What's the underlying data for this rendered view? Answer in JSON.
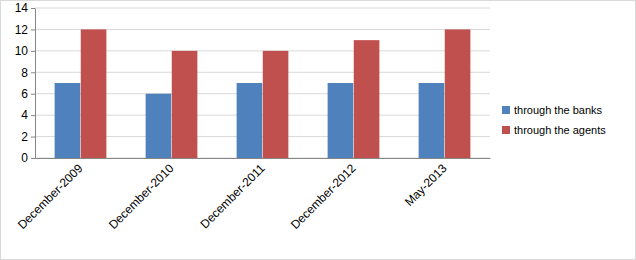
{
  "chart_data": {
    "type": "bar",
    "categories": [
      "December-2009",
      "December-2010",
      "December-2011",
      "December-2012",
      "May-2013"
    ],
    "series": [
      {
        "name": "through the banks",
        "color": "#4f81bd",
        "values": [
          7,
          6,
          7,
          7,
          7
        ]
      },
      {
        "name": "through the agents",
        "color": "#c0504d",
        "values": [
          12,
          10,
          10,
          11,
          12
        ]
      }
    ],
    "ylim": [
      0,
      14
    ],
    "yticks": [
      0,
      2,
      4,
      6,
      8,
      10,
      12,
      14
    ],
    "grid": true,
    "legend": "right"
  }
}
